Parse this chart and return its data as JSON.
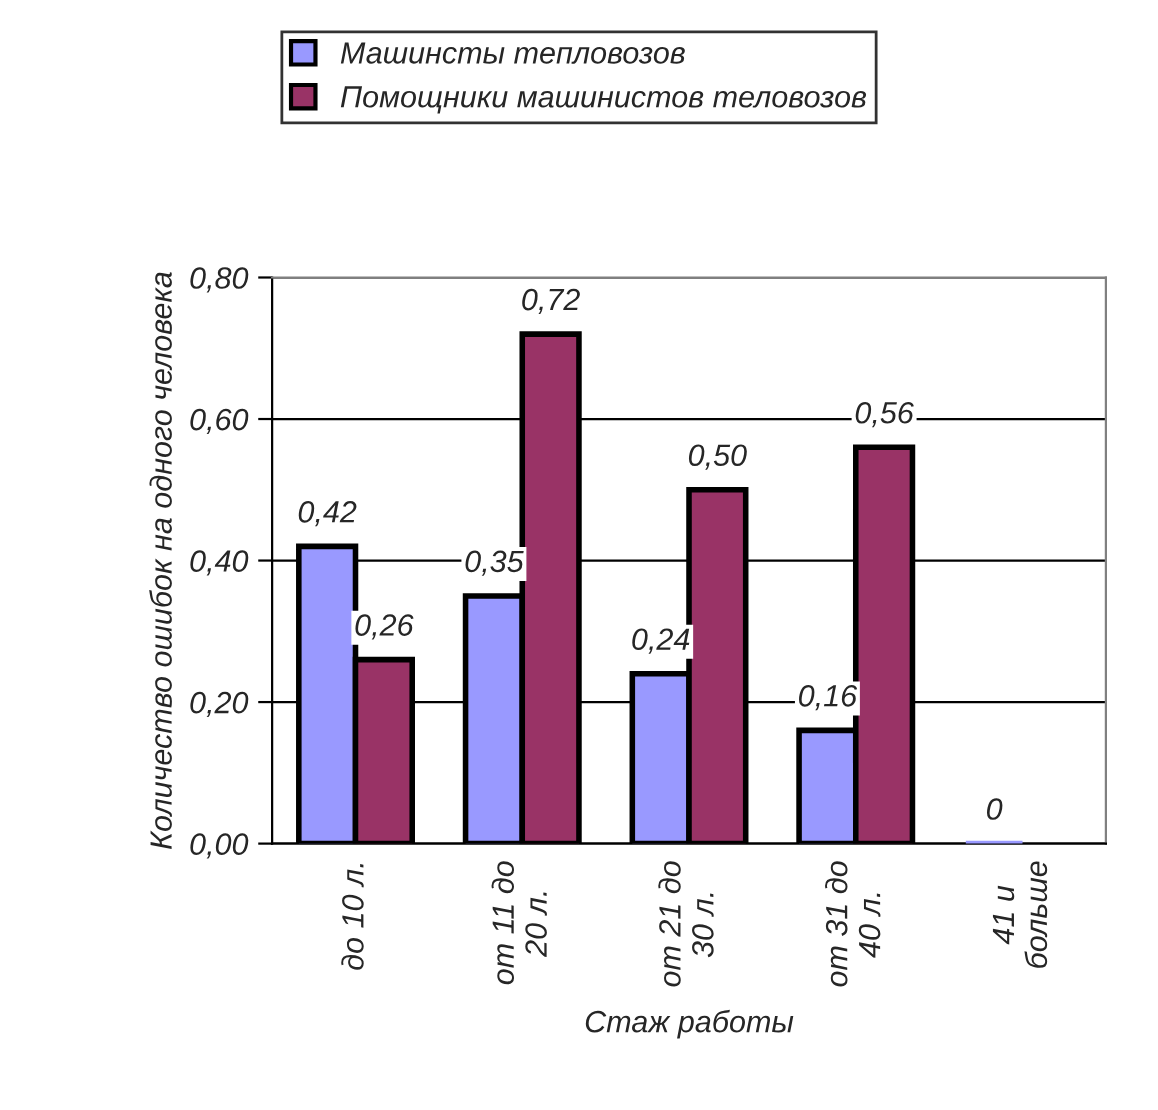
{
  "chart_data": {
    "type": "bar",
    "xlabel": "Стаж работы",
    "ylabel": "Количество ошибок на одного человека",
    "categories": [
      "до 10 л.",
      "от 11 до 20 л.",
      "от 21 до 30 л.",
      "от 31 до 40 л.",
      "41 и больше"
    ],
    "series": [
      {
        "name": "Машинсты тепловозов",
        "color": "#9999ff",
        "values": [
          0.42,
          0.35,
          0.24,
          0.16,
          0
        ],
        "value_labels": [
          "0,42",
          "0,35",
          "0,24",
          "0,16",
          "0"
        ]
      },
      {
        "name": "Помощники машинистов теловозов",
        "color": "#993366",
        "values": [
          0.26,
          0.72,
          0.5,
          0.56,
          null
        ],
        "value_labels": [
          "0,26",
          "0,72",
          "0,50",
          "0,56",
          null
        ]
      }
    ],
    "ylim": [
      0,
      0.8
    ],
    "yticks": [
      {
        "value": 0,
        "label": "0,00"
      },
      {
        "value": 0.2,
        "label": "0,20"
      },
      {
        "value": 0.4,
        "label": "0,40"
      },
      {
        "value": 0.6,
        "label": "0,60"
      },
      {
        "value": 0.8,
        "label": "0,80"
      }
    ],
    "grid": "y",
    "legend": "top"
  }
}
